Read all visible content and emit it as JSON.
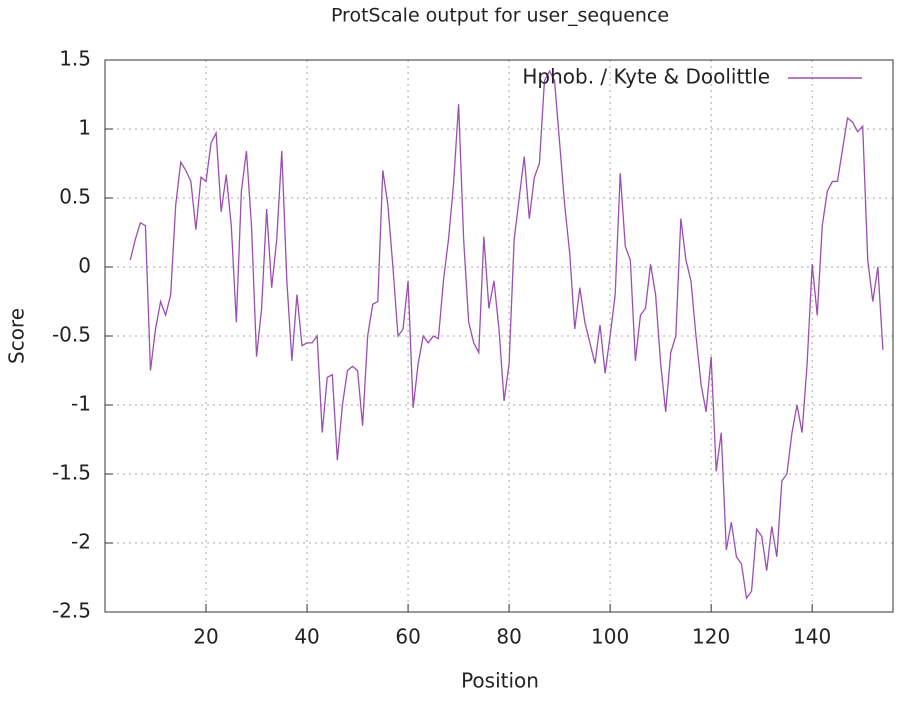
{
  "chart_data": {
    "type": "line",
    "title": "ProtScale output for user_sequence",
    "x_label": "Position",
    "y_label": "Score",
    "x": [
      5,
      6,
      7,
      8,
      9,
      10,
      11,
      12,
      13,
      14,
      15,
      16,
      17,
      18,
      19,
      20,
      21,
      22,
      23,
      24,
      25,
      26,
      27,
      28,
      29,
      30,
      31,
      32,
      33,
      34,
      35,
      36,
      37,
      38,
      39,
      40,
      41,
      42,
      43,
      44,
      45,
      46,
      47,
      48,
      49,
      50,
      51,
      52,
      53,
      54,
      55,
      56,
      57,
      58,
      59,
      60,
      61,
      62,
      63,
      64,
      65,
      66,
      67,
      68,
      69,
      70,
      71,
      72,
      73,
      74,
      75,
      76,
      77,
      78,
      79,
      80,
      81,
      82,
      83,
      84,
      85,
      86,
      87,
      88,
      89,
      90,
      91,
      92,
      93,
      94,
      95,
      96,
      97,
      98,
      99,
      100,
      101,
      102,
      103,
      104,
      105,
      106,
      107,
      108,
      109,
      110,
      111,
      112,
      113,
      114,
      115,
      116,
      117,
      118,
      119,
      120,
      121,
      122,
      123,
      124,
      125,
      126,
      127,
      128,
      129,
      130,
      131,
      132,
      133,
      134,
      135,
      136,
      137,
      138,
      139,
      140,
      141,
      142,
      143,
      144,
      145,
      146,
      147,
      148,
      149,
      150,
      151,
      152,
      153,
      154
    ],
    "series": [
      {
        "name": "Hphob. / Kyte & Doolittle",
        "color": "#9b4fb0",
        "values": [
          0.05,
          0.2,
          0.32,
          0.3,
          -0.75,
          -0.45,
          -0.25,
          -0.35,
          -0.2,
          0.45,
          0.76,
          0.7,
          0.62,
          0.27,
          0.65,
          0.62,
          0.9,
          0.97,
          0.4,
          0.67,
          0.3,
          -0.4,
          0.55,
          0.84,
          0.3,
          -0.65,
          -0.3,
          0.42,
          -0.15,
          0.2,
          0.84,
          -0.1,
          -0.68,
          -0.2,
          -0.57,
          -0.55,
          -0.55,
          -0.5,
          -1.2,
          -0.8,
          -0.78,
          -1.4,
          -1.0,
          -0.75,
          -0.72,
          -0.75,
          -1.15,
          -0.5,
          -0.27,
          -0.25,
          0.7,
          0.45,
          0.0,
          -0.5,
          -0.45,
          -0.1,
          -1.02,
          -0.7,
          -0.5,
          -0.55,
          -0.5,
          -0.52,
          -0.1,
          0.2,
          0.6,
          1.18,
          0.2,
          -0.4,
          -0.55,
          -0.62,
          0.22,
          -0.3,
          -0.1,
          -0.45,
          -0.97,
          -0.7,
          0.2,
          0.5,
          0.8,
          0.35,
          0.65,
          0.75,
          1.35,
          1.42,
          1.35,
          0.9,
          0.45,
          0.1,
          -0.45,
          -0.15,
          -0.4,
          -0.55,
          -0.7,
          -0.42,
          -0.77,
          -0.5,
          -0.2,
          0.68,
          0.15,
          0.05,
          -0.68,
          -0.35,
          -0.3,
          0.02,
          -0.2,
          -0.7,
          -1.05,
          -0.62,
          -0.5,
          0.35,
          0.05,
          -0.1,
          -0.5,
          -0.85,
          -1.05,
          -0.65,
          -1.48,
          -1.2,
          -2.05,
          -1.85,
          -2.1,
          -2.15,
          -2.4,
          -2.35,
          -1.9,
          -1.95,
          -2.2,
          -1.88,
          -2.1,
          -1.55,
          -1.5,
          -1.2,
          -1.0,
          -1.2,
          -0.7,
          0.02,
          -0.35,
          0.3,
          0.55,
          0.62,
          0.62,
          0.85,
          1.08,
          1.05,
          0.98,
          1.02,
          0.05,
          -0.25,
          0.0,
          -0.6
        ]
      }
    ],
    "xlim": [
      0,
      156
    ],
    "xticks": [
      20,
      40,
      60,
      80,
      100,
      120,
      140
    ],
    "ylim": [
      -2.5,
      1.5
    ],
    "yticks": [
      -2.5,
      -2,
      -1.5,
      -1,
      -0.5,
      0,
      0.5,
      1,
      1.5
    ],
    "grid": true,
    "legend": "top-right"
  }
}
